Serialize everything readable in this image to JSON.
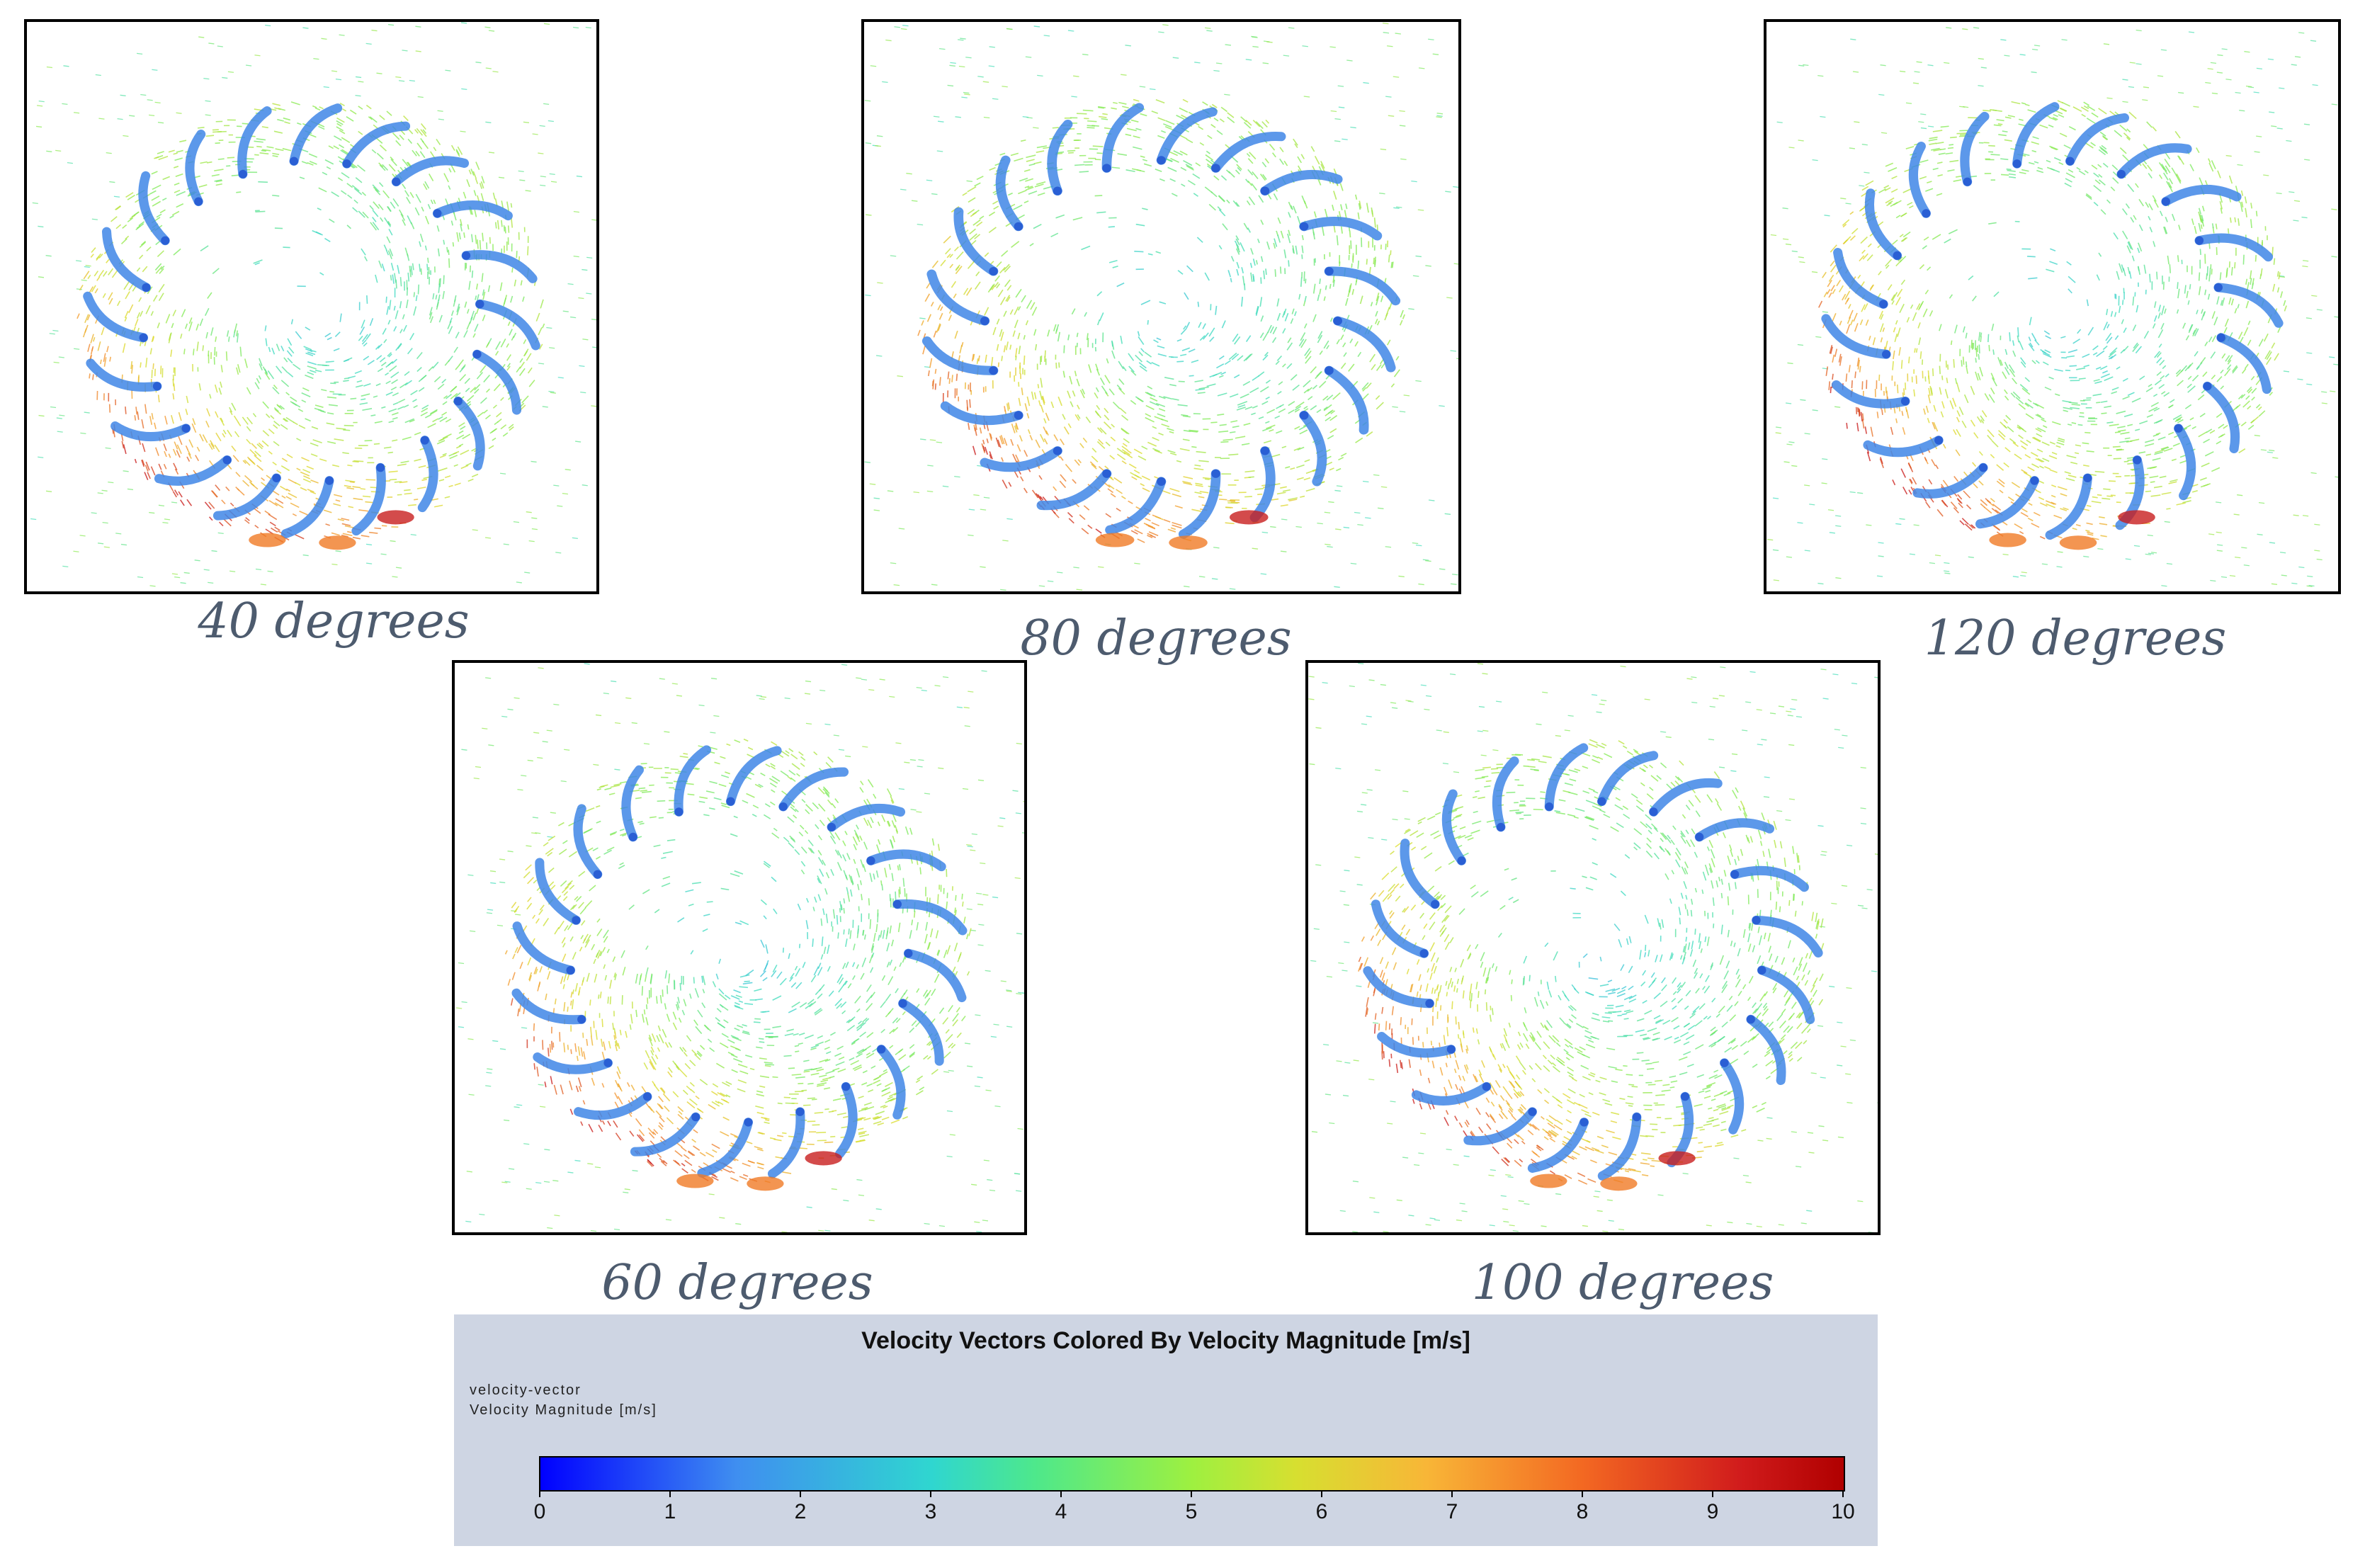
{
  "panels": [
    {
      "id": "p40",
      "caption": "40 degrees",
      "angle": 40
    },
    {
      "id": "p80",
      "caption": "80 degrees",
      "angle": 80
    },
    {
      "id": "p120",
      "caption": "120 degrees",
      "angle": 120
    },
    {
      "id": "p60",
      "caption": "60 degrees",
      "angle": 60
    },
    {
      "id": "p100",
      "caption": "100 degrees",
      "angle": 100
    }
  ],
  "legend": {
    "title": "Velocity Vectors Colored By Velocity Magnitude [m/s]",
    "line1": "velocity-vector",
    "line2": "Velocity Magnitude [m/s]",
    "min": 0,
    "max": 10,
    "ticks": [
      "0",
      "1",
      "2",
      "3",
      "4",
      "5",
      "6",
      "7",
      "8",
      "9",
      "10"
    ],
    "colors": {
      "low": "#0000ff",
      "mid_low": "#2fd6d0",
      "mid": "#9ef040",
      "mid_high": "#f8b637",
      "high": "#b00000"
    }
  }
}
